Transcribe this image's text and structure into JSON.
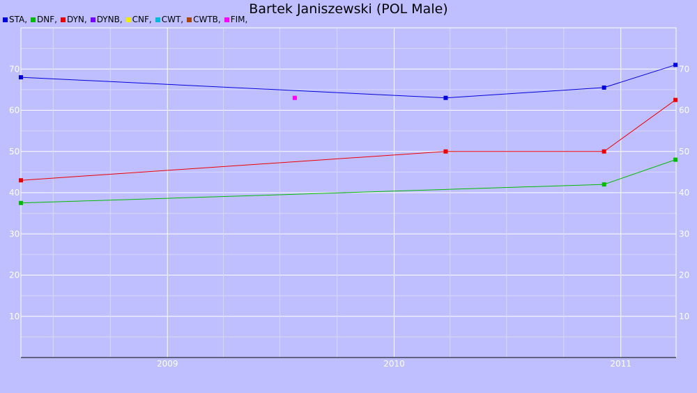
{
  "chart_data": {
    "type": "line",
    "title": "Bartek Janiszewski (POL Male)",
    "legend": [
      {
        "name": "STA",
        "label": "STA,",
        "color": "#0000dd"
      },
      {
        "name": "DNF",
        "label": "DNF,",
        "color": "#00bb00"
      },
      {
        "name": "DYN",
        "label": "DYN,",
        "color": "#ee0000"
      },
      {
        "name": "DYNB",
        "label": "DYNB,",
        "color": "#7700ff"
      },
      {
        "name": "CNF",
        "label": "CNF,",
        "color": "#eeee00"
      },
      {
        "name": "CWT",
        "label": "CWT,",
        "color": "#00bbdd"
      },
      {
        "name": "CWTB",
        "label": "CWTB,",
        "color": "#aa4400"
      },
      {
        "name": "FIM",
        "label": "FIM,",
        "color": "#ff00ff"
      }
    ],
    "x_axis": {
      "min": "2008-05-10",
      "max": "2011-03-31",
      "ticks": [
        "2009",
        "2010",
        "2011"
      ]
    },
    "y_axis": {
      "min": 0,
      "max": 80,
      "ticks": [
        10,
        20,
        30,
        40,
        50,
        60,
        70
      ],
      "left_and_right": true
    },
    "grid": true,
    "legend_position": "top-left",
    "series": [
      {
        "name": "STA",
        "color": "#0000dd",
        "points": [
          [
            "2008-05-10",
            68
          ],
          [
            "2010-03-25",
            63
          ],
          [
            "2010-12-05",
            65.5
          ],
          [
            "2011-03-30",
            71
          ]
        ]
      },
      {
        "name": "DNF",
        "color": "#00bb00",
        "points": [
          [
            "2008-05-10",
            37.5
          ],
          [
            "2010-12-05",
            42
          ],
          [
            "2011-03-30",
            48
          ]
        ]
      },
      {
        "name": "DYN",
        "color": "#ee0000",
        "points": [
          [
            "2008-05-10",
            43
          ],
          [
            "2010-03-25",
            50
          ],
          [
            "2010-12-05",
            50
          ],
          [
            "2011-03-30",
            62.5
          ]
        ]
      },
      {
        "name": "FIM",
        "color": "#ff00ff",
        "points": [
          [
            "2009-07-25",
            63
          ]
        ]
      }
    ]
  }
}
